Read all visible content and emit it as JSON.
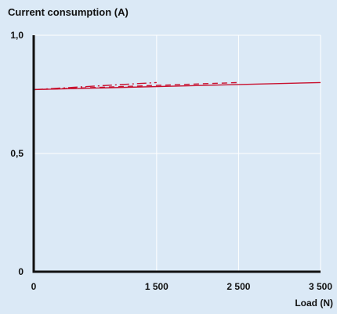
{
  "chart_data": {
    "type": "line",
    "title": "Current consumption (A)",
    "xlabel": "Load (N)",
    "ylabel": "",
    "xlim": [
      0,
      3500
    ],
    "ylim": [
      0,
      1.0
    ],
    "x_ticks": [
      0,
      1500,
      2500,
      3500
    ],
    "x_tick_labels": [
      "0",
      "1 500",
      "2 500",
      "3 500"
    ],
    "y_ticks": [
      0,
      0.5,
      1.0
    ],
    "y_tick_labels": [
      "0",
      "0,5",
      "1,0"
    ],
    "grid": true,
    "legend": "none",
    "colors": {
      "background": "#dbe9f6",
      "grid": "#ffffff",
      "axis": "#111111",
      "series": "#c8102e"
    },
    "series": [
      {
        "style": "solid",
        "x": [
          0,
          3500
        ],
        "y": [
          0.77,
          0.8
        ]
      },
      {
        "style": "dashed",
        "x": [
          0,
          2500
        ],
        "y": [
          0.77,
          0.8
        ]
      },
      {
        "style": "dashdot",
        "x": [
          0,
          1500
        ],
        "y": [
          0.77,
          0.8
        ]
      }
    ]
  }
}
